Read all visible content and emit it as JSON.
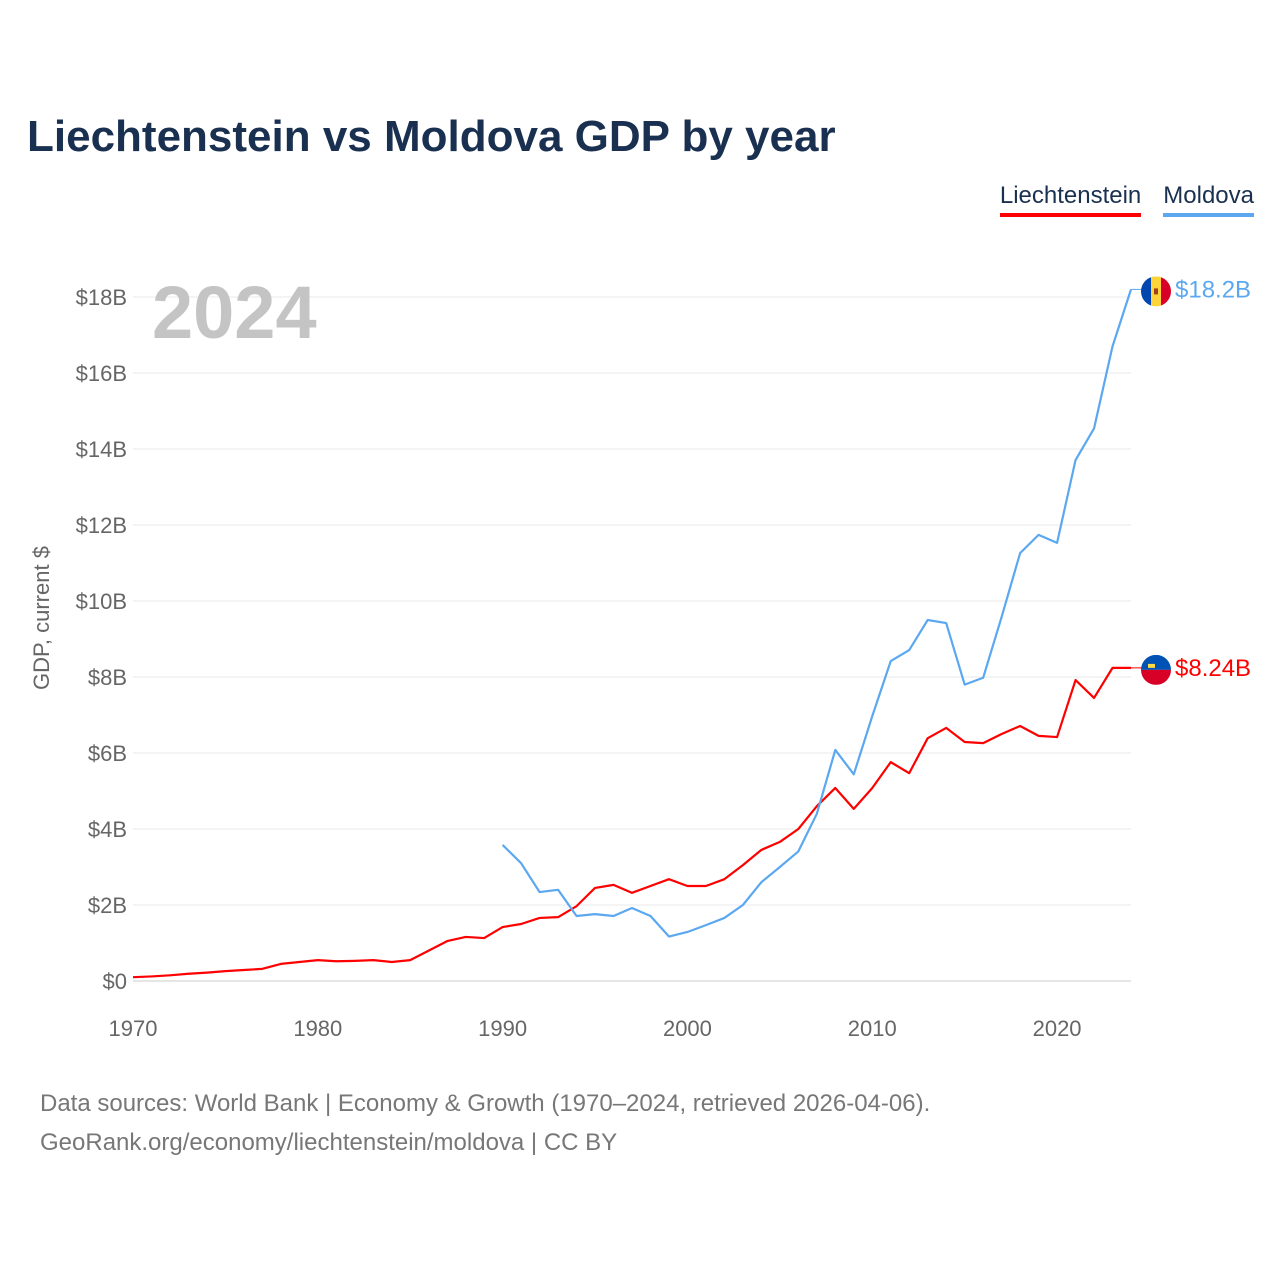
{
  "chart_data": {
    "type": "line",
    "title": "Liechtenstein vs Moldova GDP by year",
    "ylabel": "GDP, current $",
    "xlabel": "",
    "year_display": "2024",
    "xlim": [
      1970,
      2024
    ],
    "ylim": [
      0,
      18
    ],
    "x_ticks": [
      1970,
      1980,
      1990,
      2000,
      2010,
      2020
    ],
    "y_ticks": [
      0,
      2,
      4,
      6,
      8,
      10,
      12,
      14,
      16,
      18
    ],
    "y_tick_labels": [
      "$0",
      "$2B",
      "$4B",
      "$6B",
      "$8B",
      "$10B",
      "$12B",
      "$14B",
      "$16B",
      "$18B"
    ],
    "grid": true,
    "legend_position": "top-right",
    "units": "billion USD",
    "series": [
      {
        "name": "Liechtenstein",
        "color": "#ff0000",
        "end_label": "$8.24B",
        "x": [
          1970,
          1971,
          1972,
          1973,
          1974,
          1975,
          1976,
          1977,
          1978,
          1979,
          1980,
          1981,
          1982,
          1983,
          1984,
          1985,
          1986,
          1987,
          1988,
          1989,
          1990,
          1991,
          1992,
          1993,
          1994,
          1995,
          1996,
          1997,
          1998,
          1999,
          2000,
          2001,
          2002,
          2003,
          2004,
          2005,
          2006,
          2007,
          2008,
          2009,
          2010,
          2011,
          2012,
          2013,
          2014,
          2015,
          2016,
          2017,
          2018,
          2019,
          2020,
          2021,
          2022,
          2023,
          2024
        ],
        "values": [
          0.1,
          0.12,
          0.15,
          0.19,
          0.22,
          0.26,
          0.29,
          0.32,
          0.45,
          0.5,
          0.55,
          0.52,
          0.53,
          0.55,
          0.5,
          0.55,
          0.8,
          1.05,
          1.16,
          1.13,
          1.42,
          1.5,
          1.66,
          1.68,
          1.97,
          2.45,
          2.53,
          2.32,
          2.5,
          2.68,
          2.5,
          2.5,
          2.68,
          3.05,
          3.45,
          3.66,
          4.0,
          4.6,
          5.08,
          4.53,
          5.08,
          5.76,
          5.47,
          6.39,
          6.66,
          6.29,
          6.26,
          6.5,
          6.71,
          6.45,
          6.42,
          7.92,
          7.45,
          8.24,
          8.24
        ]
      },
      {
        "name": "Moldova",
        "color": "#5ba8f0",
        "end_label": "$18.2B",
        "x": [
          1990,
          1991,
          1992,
          1993,
          1994,
          1995,
          1996,
          1997,
          1998,
          1999,
          2000,
          2001,
          2002,
          2003,
          2004,
          2005,
          2006,
          2007,
          2008,
          2009,
          2010,
          2011,
          2012,
          2013,
          2014,
          2015,
          2016,
          2017,
          2018,
          2019,
          2020,
          2021,
          2022,
          2023,
          2024
        ],
        "values": [
          3.58,
          3.1,
          2.34,
          2.4,
          1.71,
          1.76,
          1.71,
          1.92,
          1.71,
          1.17,
          1.29,
          1.47,
          1.66,
          2.0,
          2.6,
          3.0,
          3.41,
          4.4,
          6.08,
          5.44,
          6.97,
          8.42,
          8.71,
          9.5,
          9.42,
          7.8,
          7.98,
          9.58,
          11.26,
          11.74,
          11.53,
          13.71,
          14.54,
          16.7,
          18.2
        ]
      }
    ]
  },
  "source": {
    "line1": "Data sources: World Bank | Economy & Growth (1970–2024, retrieved 2026-04-06).",
    "line2": "GeoRank.org/economy/liechtenstein/moldova | CC BY"
  }
}
